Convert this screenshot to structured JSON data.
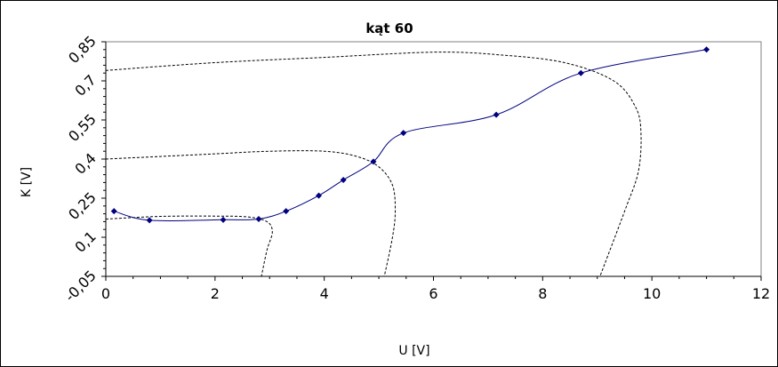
{
  "chart_data": {
    "type": "scatter",
    "title": "kąt 60",
    "xlabel": "U [V]",
    "ylabel": "K [V]",
    "xlim": [
      0,
      12
    ],
    "ylim": [
      -0.05,
      0.85
    ],
    "xticks": [
      0,
      2,
      4,
      6,
      8,
      10,
      12
    ],
    "xtick_labels": [
      "0",
      "2",
      "4",
      "6",
      "8",
      "10",
      "12"
    ],
    "yticks": [
      -0.05,
      0.1,
      0.25,
      0.4,
      0.55,
      0.7,
      0.85
    ],
    "ytick_labels": [
      "-0,05",
      "0,1",
      "0,25",
      "0,4",
      "0,55",
      "0,7",
      "0,85"
    ],
    "grid": false,
    "legend": "none",
    "series": [
      {
        "color": "#000080",
        "marker": "diamond",
        "smooth_line": true,
        "points": [
          [
            0.15,
            0.2
          ],
          [
            0.8,
            0.165
          ],
          [
            2.15,
            0.167
          ],
          [
            2.8,
            0.17
          ],
          [
            3.3,
            0.2
          ],
          [
            3.9,
            0.26
          ],
          [
            4.35,
            0.32
          ],
          [
            4.9,
            0.39
          ],
          [
            5.45,
            0.5
          ],
          [
            7.15,
            0.57
          ],
          [
            8.7,
            0.73
          ],
          [
            11.0,
            0.82
          ]
        ]
      }
    ],
    "dashed_curves": [
      [
        [
          0.0,
          0.17
        ],
        [
          1.0,
          0.18
        ],
        [
          2.0,
          0.181
        ],
        [
          2.6,
          0.178
        ],
        [
          2.95,
          0.16
        ],
        [
          3.05,
          0.12
        ],
        [
          2.95,
          0.05
        ],
        [
          2.85,
          -0.05
        ]
      ],
      [
        [
          0.0,
          0.4
        ],
        [
          1.0,
          0.41
        ],
        [
          2.0,
          0.42
        ],
        [
          3.0,
          0.43
        ],
        [
          4.0,
          0.43
        ],
        [
          4.6,
          0.41
        ],
        [
          5.0,
          0.37
        ],
        [
          5.25,
          0.3
        ],
        [
          5.3,
          0.2
        ],
        [
          5.25,
          0.1
        ],
        [
          5.1,
          -0.05
        ]
      ],
      [
        [
          0.0,
          0.74
        ],
        [
          2.0,
          0.77
        ],
        [
          4.0,
          0.79
        ],
        [
          6.0,
          0.81
        ],
        [
          7.2,
          0.8
        ],
        [
          8.4,
          0.77
        ],
        [
          9.3,
          0.7
        ],
        [
          9.7,
          0.6
        ],
        [
          9.8,
          0.5
        ],
        [
          9.75,
          0.35
        ],
        [
          9.5,
          0.2
        ],
        [
          9.05,
          -0.05
        ]
      ]
    ],
    "dashed_color": "#000000"
  }
}
